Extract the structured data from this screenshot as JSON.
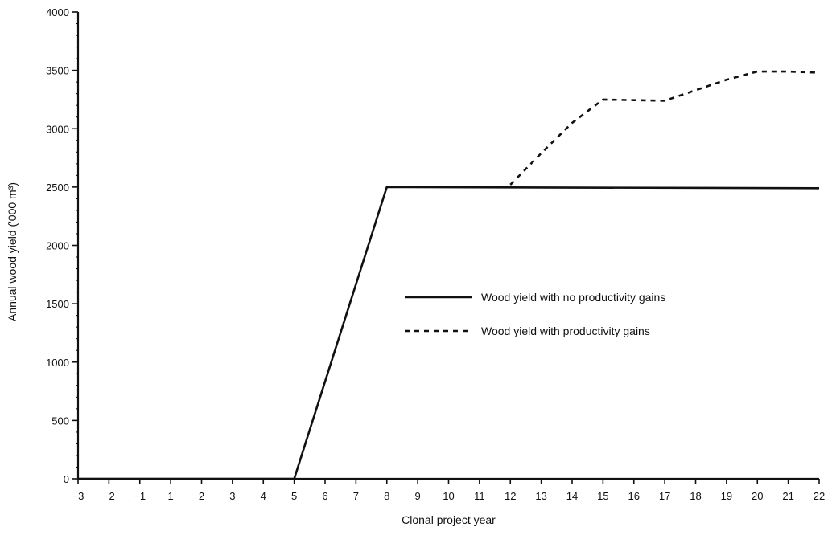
{
  "chart_data": {
    "type": "line",
    "title": "",
    "xlabel": "Clonal project year",
    "ylabel": "Annual wood yield ('000 m³)",
    "x_ticks": [
      "−3",
      "−2",
      "−1",
      "1",
      "2",
      "3",
      "4",
      "5",
      "6",
      "7",
      "8",
      "9",
      "10",
      "11",
      "12",
      "13",
      "14",
      "15",
      "16",
      "17",
      "18",
      "19",
      "20",
      "21",
      "22"
    ],
    "y_ticks": [
      "0",
      "500",
      "1000",
      "1500",
      "2000",
      "2500",
      "3000",
      "3500",
      "4000"
    ],
    "ylim": [
      0,
      4000
    ],
    "grid": false,
    "legend_position": "center-right",
    "series": [
      {
        "name": "Wood yield with no productivity gains",
        "style": "solid",
        "color": "#111111",
        "points": [
          {
            "x": "−3",
            "y": 0
          },
          {
            "x": "5",
            "y": 0
          },
          {
            "x": "8",
            "y": 2500
          },
          {
            "x": "22",
            "y": 2490
          }
        ]
      },
      {
        "name": "Wood yield with productivity gains",
        "style": "dotted",
        "color": "#111111",
        "points": [
          {
            "x": "12",
            "y": 2520
          },
          {
            "x": "13",
            "y": 2790
          },
          {
            "x": "14",
            "y": 3050
          },
          {
            "x": "15",
            "y": 3250
          },
          {
            "x": "16",
            "y": 3245
          },
          {
            "x": "17",
            "y": 3240
          },
          {
            "x": "18",
            "y": 3330
          },
          {
            "x": "19",
            "y": 3420
          },
          {
            "x": "20",
            "y": 3490
          },
          {
            "x": "21",
            "y": 3490
          },
          {
            "x": "22",
            "y": 3480
          }
        ]
      }
    ]
  }
}
